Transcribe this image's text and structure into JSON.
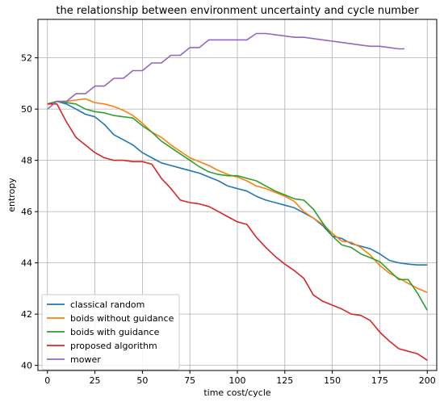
{
  "chart_data": {
    "type": "line",
    "title": "the relationship between environment uncertainty and cycle number",
    "xlabel": "time cost/cycle",
    "ylabel": "entropy",
    "xlim": [
      -5,
      205
    ],
    "ylim": [
      39.8,
      53.5
    ],
    "xticks": [
      0,
      25,
      50,
      75,
      100,
      125,
      150,
      175,
      200
    ],
    "yticks": [
      40,
      42,
      44,
      46,
      48,
      50,
      52
    ],
    "grid": true,
    "legend_position": "lower-left",
    "series": [
      {
        "name": "classical random",
        "color": "#1f77b4",
        "x": [
          0,
          5,
          10,
          15,
          20,
          25,
          30,
          35,
          40,
          45,
          50,
          55,
          60,
          65,
          70,
          75,
          80,
          85,
          90,
          95,
          100,
          105,
          110,
          115,
          120,
          125,
          130,
          135,
          140,
          145,
          150,
          155,
          160,
          165,
          170,
          175,
          180,
          185,
          190,
          195,
          200
        ],
        "y": [
          50.2,
          50.3,
          50.2,
          50.0,
          49.8,
          49.7,
          49.4,
          49.0,
          48.8,
          48.6,
          48.3,
          48.1,
          47.9,
          47.8,
          47.7,
          47.6,
          47.5,
          47.35,
          47.2,
          47.0,
          46.9,
          46.8,
          46.6,
          46.45,
          46.35,
          46.25,
          46.15,
          45.95,
          45.75,
          45.45,
          45.05,
          44.95,
          44.75,
          44.65,
          44.55,
          44.35,
          44.1,
          44.0,
          43.95,
          43.92,
          43.92
        ]
      },
      {
        "name": "boids without guidance",
        "color": "#ff7f0e",
        "x": [
          0,
          5,
          10,
          15,
          20,
          25,
          30,
          35,
          40,
          45,
          50,
          55,
          60,
          65,
          70,
          75,
          80,
          85,
          90,
          95,
          100,
          105,
          110,
          115,
          120,
          125,
          130,
          135,
          140,
          145,
          150,
          155,
          160,
          165,
          170,
          175,
          180,
          185,
          190,
          195,
          200
        ],
        "y": [
          50.2,
          50.3,
          50.3,
          50.35,
          50.4,
          50.25,
          50.2,
          50.1,
          49.95,
          49.75,
          49.45,
          49.1,
          48.9,
          48.6,
          48.35,
          48.1,
          47.95,
          47.8,
          47.6,
          47.45,
          47.35,
          47.2,
          47.0,
          46.9,
          46.75,
          46.6,
          46.4,
          46.0,
          45.75,
          45.5,
          45.15,
          44.85,
          44.8,
          44.6,
          44.3,
          43.9,
          43.6,
          43.4,
          43.2,
          43.0,
          42.85
        ]
      },
      {
        "name": "boids with guidance",
        "color": "#2ca02c",
        "x": [
          0,
          5,
          10,
          15,
          20,
          25,
          30,
          35,
          40,
          45,
          50,
          55,
          60,
          65,
          70,
          75,
          80,
          85,
          90,
          95,
          100,
          105,
          110,
          115,
          120,
          125,
          130,
          135,
          140,
          145,
          150,
          155,
          160,
          165,
          170,
          175,
          180,
          185,
          190,
          195,
          200
        ],
        "y": [
          50.2,
          50.3,
          50.25,
          50.2,
          50.0,
          49.9,
          49.85,
          49.75,
          49.7,
          49.65,
          49.35,
          49.1,
          48.75,
          48.5,
          48.25,
          48.0,
          47.75,
          47.55,
          47.45,
          47.4,
          47.4,
          47.3,
          47.2,
          47.0,
          46.8,
          46.65,
          46.5,
          46.45,
          46.1,
          45.55,
          45.05,
          44.7,
          44.6,
          44.35,
          44.2,
          44.05,
          43.7,
          43.35,
          43.35,
          42.8,
          42.15
        ]
      },
      {
        "name": "proposed algorithm",
        "color": "#d62728",
        "x": [
          0,
          5,
          10,
          15,
          20,
          25,
          30,
          35,
          40,
          45,
          50,
          55,
          60,
          65,
          70,
          75,
          80,
          85,
          90,
          95,
          100,
          105,
          110,
          115,
          120,
          125,
          130,
          135,
          140,
          145,
          150,
          155,
          160,
          165,
          170,
          175,
          180,
          185,
          190,
          195,
          200
        ],
        "y": [
          50.2,
          50.2,
          49.5,
          48.9,
          48.6,
          48.3,
          48.1,
          48.0,
          48.0,
          47.95,
          47.95,
          47.85,
          47.3,
          46.9,
          46.45,
          46.35,
          46.3,
          46.2,
          46.0,
          45.8,
          45.6,
          45.5,
          45.0,
          44.6,
          44.25,
          43.95,
          43.7,
          43.4,
          42.75,
          42.5,
          42.35,
          42.2,
          42.0,
          41.95,
          41.75,
          41.3,
          40.95,
          40.65,
          40.55,
          40.45,
          40.2
        ]
      },
      {
        "name": "mower",
        "color": "#9467bd",
        "x": [
          0,
          5,
          10,
          15,
          20,
          25,
          30,
          35,
          40,
          45,
          50,
          55,
          60,
          65,
          70,
          75,
          80,
          85,
          90,
          95,
          100,
          105,
          110,
          115,
          120,
          125,
          130,
          135,
          140,
          145,
          150,
          155,
          160,
          165,
          170,
          175,
          180,
          185,
          188
        ],
        "y": [
          50.0,
          50.3,
          50.3,
          50.6,
          50.6,
          50.9,
          50.9,
          51.2,
          51.2,
          51.5,
          51.5,
          51.8,
          51.8,
          52.1,
          52.1,
          52.4,
          52.4,
          52.7,
          52.7,
          52.7,
          52.7,
          52.7,
          52.95,
          52.95,
          52.9,
          52.85,
          52.8,
          52.8,
          52.75,
          52.7,
          52.65,
          52.6,
          52.55,
          52.5,
          52.45,
          52.45,
          52.4,
          52.35,
          52.35
        ]
      }
    ]
  }
}
